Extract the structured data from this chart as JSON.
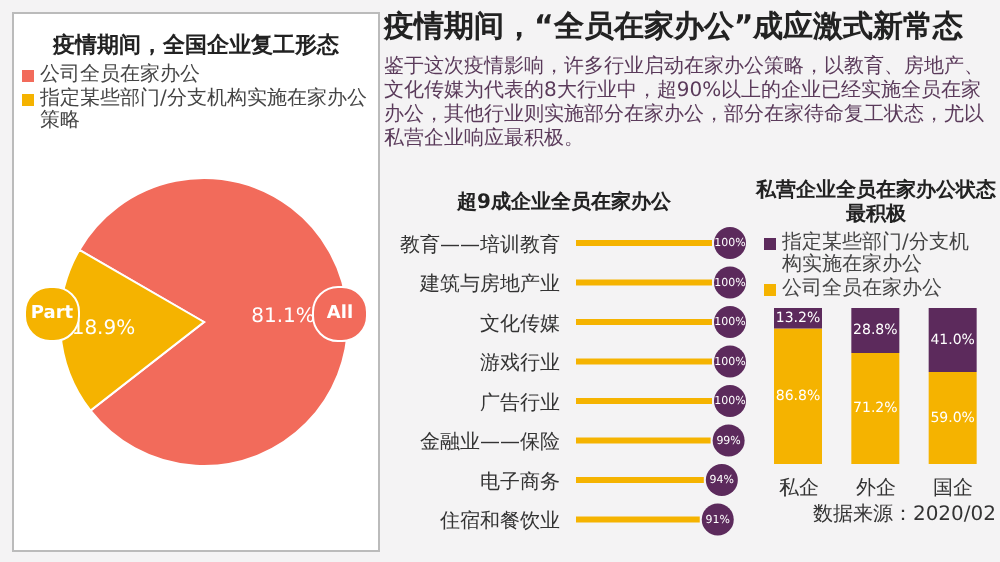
{
  "chart_data": [
    {
      "type": "pie",
      "title": "疫情期间，全国企业复工形态",
      "categories": [
        "公司全员在家办公",
        "指定某些部门/分支机构实施在家办公策略"
      ],
      "values": [
        81.1,
        18.9
      ],
      "colors": [
        "#f26b5b",
        "#f5b300"
      ],
      "value_labels": [
        "81.1%",
        "18.9%"
      ],
      "annotations": [
        "All",
        "Part"
      ],
      "legend": "top left"
    },
    {
      "type": "bar",
      "orientation": "horizontal",
      "title": "超9成企业全员在家办公",
      "categories": [
        "教育——培训教育",
        "建筑与房地产业",
        "文化传媒",
        "游戏行业",
        "广告行业",
        "金融业——保险",
        "电子商务",
        "住宿和餐饮业"
      ],
      "values": [
        100,
        100,
        100,
        100,
        100,
        99,
        94,
        91
      ],
      "value_labels": [
        "100%",
        "100%",
        "100%",
        "100%",
        "100%",
        "99%",
        "94%",
        "91%"
      ],
      "color": "#f5b300",
      "annotations": [
        "疫情期间，“全员在家办公”成应激式新常态",
        "鉴于这次疫情影响，许多行业启动在家办公策略，以教育、房地产、文化传媒为代表的8大行业中，超90%以上的企业已经实施全员在家办公，其他行业则实施部分在家办公，部分在家待命复工状态，尤以私营企业响应最积极。"
      ]
    },
    {
      "type": "bar",
      "stacked": true,
      "title": "私营企业全员在家办公状态最积极",
      "categories": [
        "私企",
        "外企",
        "国企"
      ],
      "series": [
        {
          "name": "公司全员在家办公",
          "color": "#f5b300",
          "values": [
            86.8,
            71.2,
            59.0
          ],
          "value_labels": [
            "86.8%",
            "71.2%",
            "59.0%"
          ]
        },
        {
          "name": "指定某些部门/分支机构实施在家办公",
          "color": "#5c2a5c",
          "values": [
            13.2,
            28.8,
            41.0
          ],
          "value_labels": [
            "13.2%",
            "28.8%",
            "41.0%"
          ]
        }
      ],
      "legend": "top",
      "annotations": [
        "数据来源：2020/02"
      ]
    }
  ]
}
